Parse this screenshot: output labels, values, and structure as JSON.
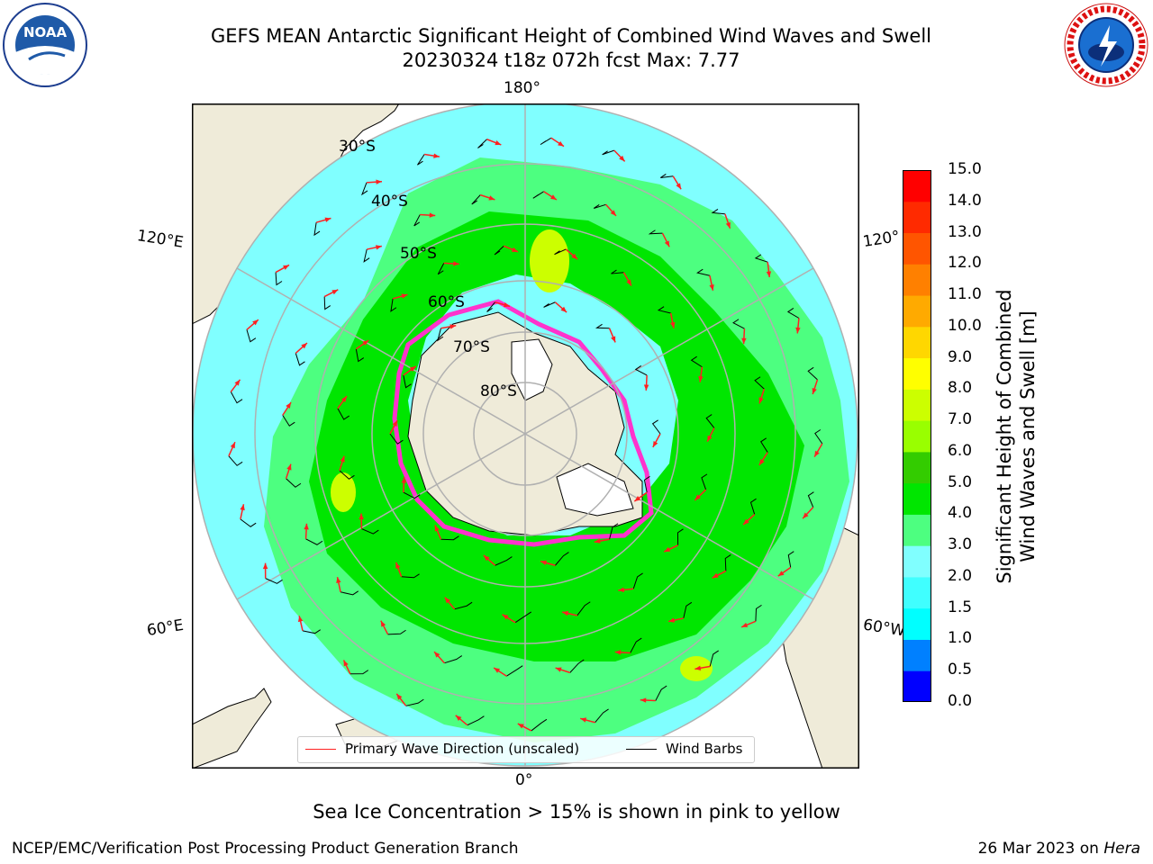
{
  "header": {
    "title_line1": "GEFS MEAN Antarctic Significant Height of Combined Wind Waves and Swell",
    "title_line2": "20230324 t18z 072h fcst   Max: 7.77"
  },
  "logos": {
    "left": "NOAA",
    "left_ring": "NATIONAL OCEANIC AND ATMOSPHERIC ADMINISTRATION · U.S. DEPARTMENT OF COMMERCE",
    "right_ring": "NATIONAL WEATHER SERVICE"
  },
  "map": {
    "projection": "south-polar-stereographic",
    "lon_labels": {
      "top": "180°",
      "bottom": "0°",
      "upper_left": "120°E",
      "lower_left": "60°E",
      "upper_right": "120°",
      "lower_right": "60°W"
    },
    "lat_labels": [
      "30°S",
      "40°S",
      "50°S",
      "60°S",
      "70°S",
      "80°S"
    ],
    "colors": {
      "land": "#efebd9",
      "ocean_low": "#80ffff",
      "ocean_mid": "#4dff80",
      "high": "#ffff33",
      "ice_pink": "#ff33cc",
      "arrow": "#ff2020",
      "barb": "#000000",
      "grid": "#b0b0b0"
    }
  },
  "colorbar": {
    "label_line1": "Significant Height of Combined",
    "label_line2": "Wind Waves and Swell [m]",
    "ticks": [
      "0.0",
      "0.5",
      "1.0",
      "1.5",
      "2.0",
      "3.0",
      "4.0",
      "5.0",
      "6.0",
      "7.0",
      "8.0",
      "9.0",
      "10.0",
      "11.0",
      "12.0",
      "13.0",
      "14.0",
      "15.0"
    ],
    "colors": [
      "#0000ff",
      "#0080ff",
      "#00ffff",
      "#40ffff",
      "#80ffff",
      "#4dff80",
      "#00e600",
      "#33cc00",
      "#99ff00",
      "#ccff00",
      "#ffff00",
      "#ffd700",
      "#ffaa00",
      "#ff8000",
      "#ff5500",
      "#ff2a00",
      "#ff0000"
    ]
  },
  "legend": {
    "primary_wave": "Primary Wave Direction (unscaled)",
    "wind_barbs": "Wind Barbs"
  },
  "caption": "Sea Ice Concentration > 15% is shown in pink to yellow",
  "footer": {
    "left": "NCEP/EMC/Verification Post Processing Product Generation Branch",
    "date": "26 Mar 2023 on",
    "host": "Hera"
  }
}
